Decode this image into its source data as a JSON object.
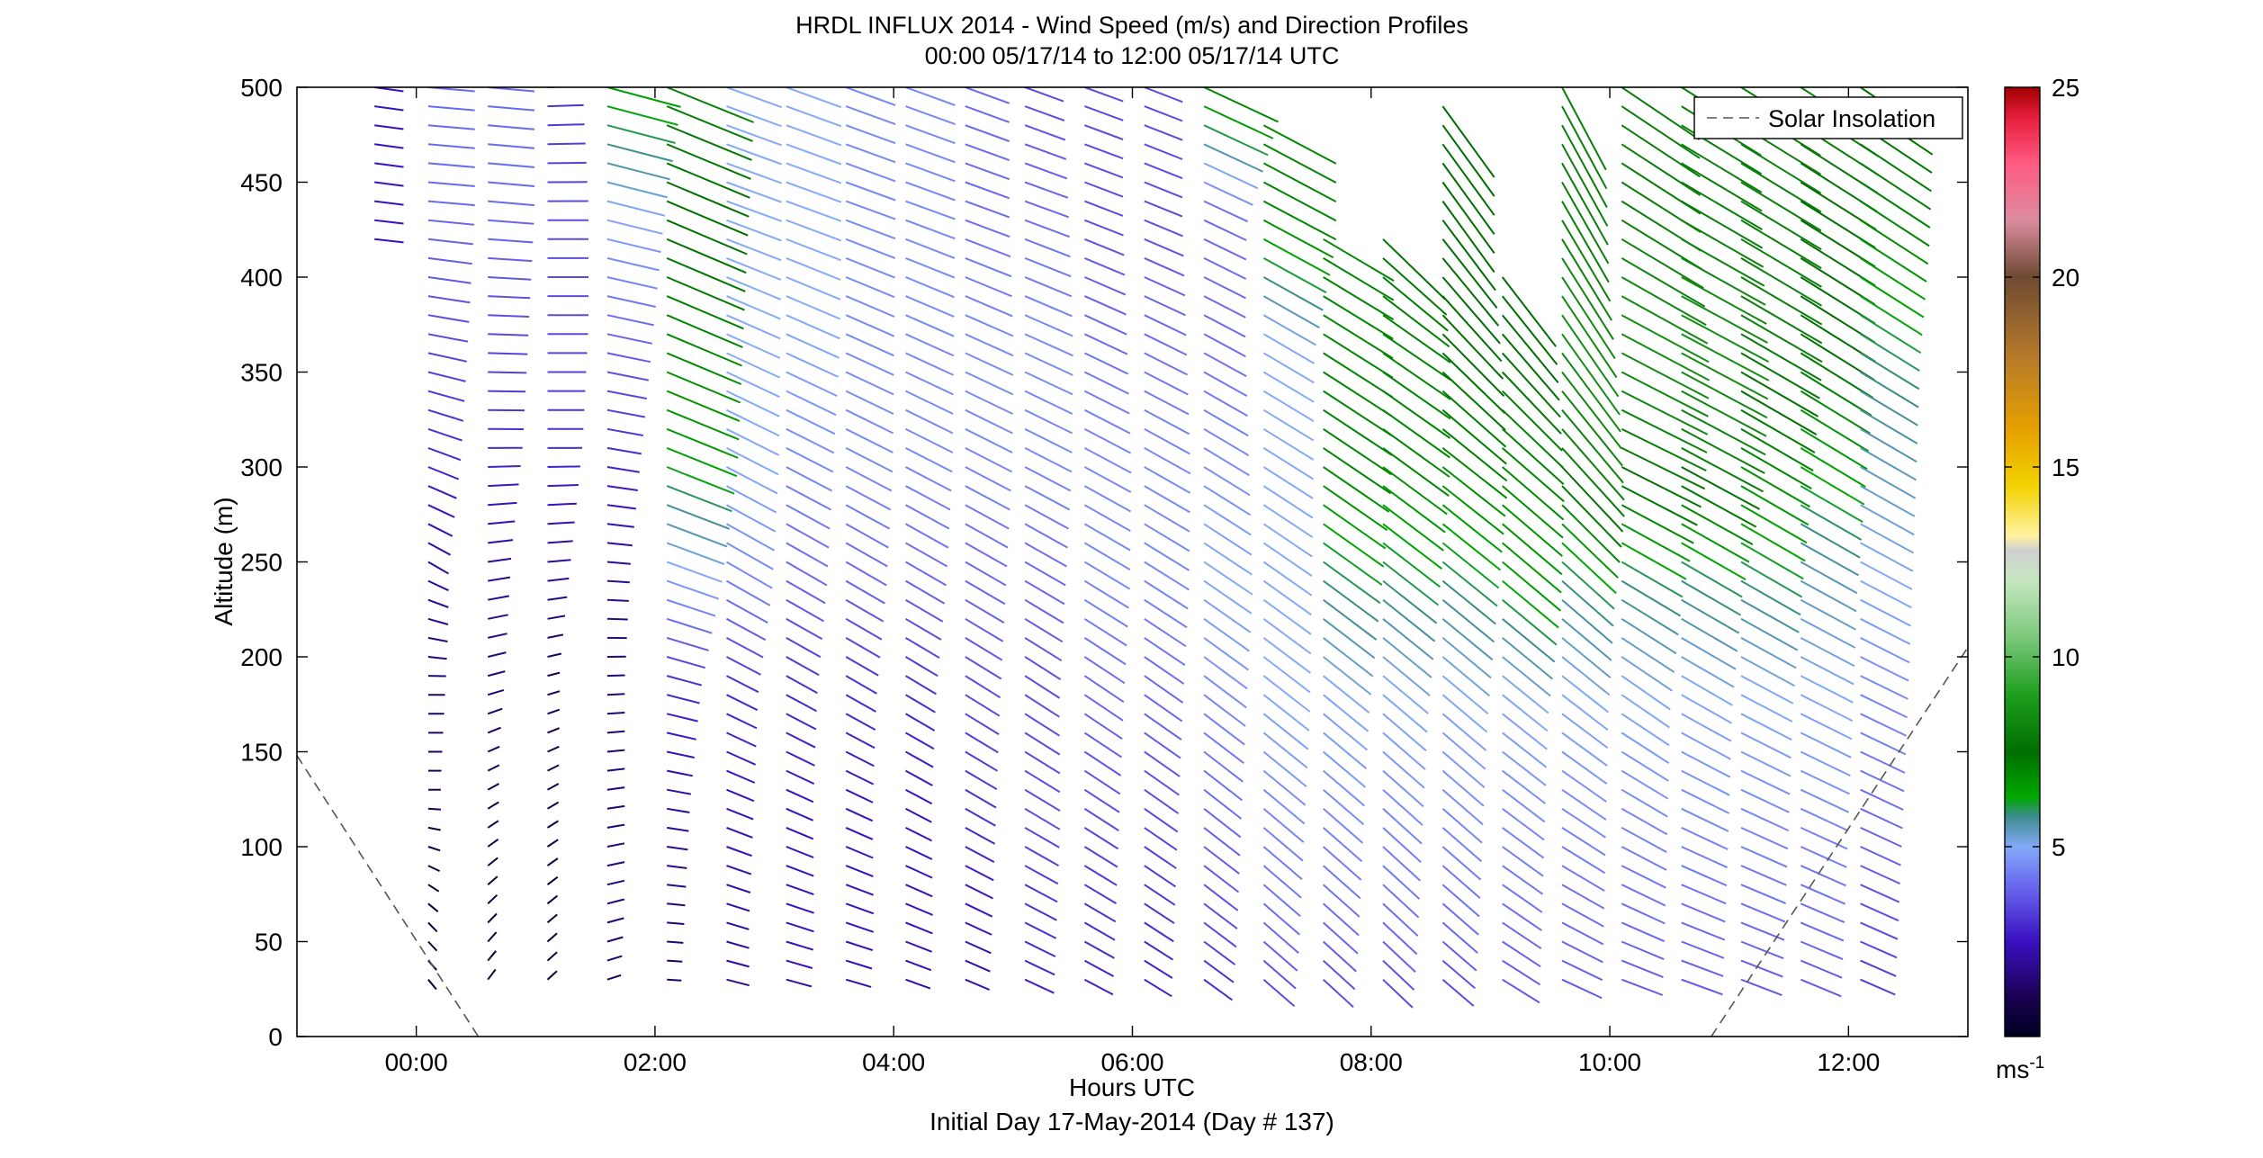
{
  "chart_data": {
    "type": "wind-barb profile",
    "title": "HRDL INFLUX 2014 - Wind Speed (m/s) and Direction Profiles",
    "subtitle": "00:00 05/17/14 to 12:00 05/17/14  UTC",
    "xlabel": "Hours UTC",
    "xlabel2": "Initial Day 17-May-2014 (Day # 137)",
    "ylabel": "Altitude (m)",
    "xlim": [
      -1.0,
      13.0
    ],
    "ylim": [
      0,
      500
    ],
    "xticks": [
      0,
      2,
      4,
      6,
      8,
      10,
      12
    ],
    "xticklabels": [
      "00:00",
      "02:00",
      "04:00",
      "06:00",
      "08:00",
      "10:00",
      "12:00"
    ],
    "yticks": [
      0,
      50,
      100,
      150,
      200,
      250,
      300,
      350,
      400,
      450,
      500
    ],
    "yticklabels": [
      "0",
      "50",
      "100",
      "150",
      "200",
      "250",
      "300",
      "350",
      "400",
      "450",
      "500"
    ],
    "legend": {
      "entries": [
        "Solar Insolation"
      ],
      "placement": "top-right",
      "line_style": "dashed",
      "line_color": "#555555"
    },
    "colorbar": {
      "range": [
        0,
        25
      ],
      "ticks": [
        5,
        10,
        15,
        20,
        25
      ],
      "ticklabels": [
        "5",
        "10",
        "15",
        "20",
        "25"
      ],
      "unit_base": "ms",
      "unit_exp": "-1",
      "colormap": [
        [
          0,
          "#000022"
        ],
        [
          1,
          "#1a0050"
        ],
        [
          2.5,
          "#3a10c0"
        ],
        [
          4,
          "#6a6af0"
        ],
        [
          5,
          "#84aaf8"
        ],
        [
          5.8,
          "#3c8c8c"
        ],
        [
          6.3,
          "#00a800"
        ],
        [
          7.5,
          "#006e00"
        ],
        [
          9,
          "#1e9e1e"
        ],
        [
          10.5,
          "#7ac87a"
        ],
        [
          12,
          "#c6e6c0"
        ],
        [
          12.8,
          "#d0d0d0"
        ],
        [
          13.2,
          "#fff2a0"
        ],
        [
          14.5,
          "#f2d200"
        ],
        [
          16,
          "#e6a000"
        ],
        [
          18,
          "#b4782c"
        ],
        [
          20,
          "#6e4a32"
        ],
        [
          21.5,
          "#dc8ca0"
        ],
        [
          23,
          "#ff5a82"
        ],
        [
          24.2,
          "#e61e3c"
        ],
        [
          25,
          "#a00000"
        ]
      ]
    },
    "solar_insolation": {
      "morning": [
        [
          -1.0,
          148
        ],
        [
          0.52,
          0
        ]
      ],
      "evening": [
        [
          10.85,
          0
        ],
        [
          13.0,
          205
        ]
      ]
    },
    "wind_profiles": {
      "times": [
        -0.35,
        0.1,
        0.6,
        1.1,
        1.6,
        2.1,
        2.6,
        3.1,
        3.6,
        4.1,
        4.6,
        5.1,
        5.6,
        6.1,
        6.6,
        7.1,
        7.6,
        8.1,
        8.6,
        9.1,
        9.6,
        10.1,
        10.6,
        11.1,
        11.6,
        12.1
      ],
      "altitude_start": 30,
      "altitude_step": 10,
      "altitude_end": 500,
      "coverage_top": [
        500,
        500,
        500,
        500,
        500,
        500,
        500,
        500,
        500,
        500,
        500,
        500,
        500,
        500,
        500,
        480,
        420,
        420,
        490,
        400,
        500,
        500,
        500,
        500,
        500,
        500
      ],
      "coverage_bottom": [
        420,
        30,
        30,
        30,
        30,
        30,
        30,
        30,
        20,
        10,
        0,
        0,
        30,
        30,
        30,
        30,
        30,
        30,
        30,
        20,
        30,
        30,
        30,
        30,
        30,
        30
      ],
      "speed_ms": [
        [
          3.0,
          3.5,
          3.5,
          3.5,
          3.0,
          2.8,
          2.5,
          2.5,
          2.5
        ],
        [
          0.5,
          0.5,
          1.0,
          1.5,
          2.0,
          3.0,
          3.5,
          4.0,
          4.0
        ],
        [
          0.5,
          0.5,
          0.8,
          1.5,
          2.0,
          3.0,
          3.5,
          4.0,
          4.0
        ],
        [
          0.5,
          0.5,
          0.8,
          1.0,
          2.0,
          3.0,
          3.5,
          3.5,
          3.0
        ],
        [
          1.0,
          1.5,
          1.5,
          1.5,
          2.0,
          3.0,
          4.0,
          5.0,
          6.5
        ],
        [
          1.0,
          1.5,
          2.0,
          3.0,
          5.0,
          6.5,
          7.0,
          7.5,
          8.0
        ],
        [
          2.0,
          2.0,
          2.5,
          3.0,
          4.5,
          5.0,
          5.0,
          5.0,
          5.0
        ],
        [
          2.0,
          2.5,
          2.5,
          3.0,
          4.0,
          4.5,
          5.0,
          5.0,
          5.0
        ],
        [
          2.0,
          2.5,
          2.5,
          3.0,
          4.0,
          4.5,
          4.5,
          4.5,
          4.5
        ],
        [
          2.0,
          2.5,
          2.5,
          3.0,
          4.0,
          4.5,
          4.5,
          4.5,
          4.5
        ],
        [
          2.0,
          2.5,
          3.0,
          3.5,
          4.0,
          4.5,
          4.5,
          4.0,
          4.0
        ],
        [
          2.5,
          3.0,
          3.5,
          3.5,
          4.0,
          4.5,
          4.5,
          4.0,
          3.5
        ],
        [
          2.5,
          3.0,
          3.5,
          4.0,
          4.5,
          4.5,
          4.0,
          3.5,
          3.5
        ],
        [
          2.5,
          3.0,
          3.5,
          4.0,
          4.5,
          4.5,
          4.0,
          3.5,
          3.5
        ],
        [
          2.5,
          3.5,
          4.0,
          4.5,
          5.0,
          4.5,
          4.0,
          4.0,
          7.0
        ],
        [
          3.0,
          4.0,
          4.5,
          5.0,
          5.0,
          5.0,
          5.0,
          7.0,
          7.0
        ],
        [
          3.0,
          4.0,
          4.5,
          5.0,
          6.0,
          7.0,
          7.0,
          7.0,
          7.0
        ],
        [
          3.0,
          4.0,
          4.5,
          5.0,
          6.0,
          7.0,
          7.0,
          7.5,
          7.5
        ],
        [
          3.0,
          4.0,
          4.5,
          5.0,
          6.0,
          7.0,
          7.5,
          7.5,
          7.5
        ],
        [
          3.5,
          4.0,
          4.5,
          5.0,
          6.5,
          7.0,
          7.5,
          7.5,
          7.5
        ],
        [
          3.5,
          4.0,
          4.5,
          5.0,
          6.0,
          8.0,
          8.5,
          8.0,
          8.0
        ],
        [
          3.5,
          4.0,
          4.5,
          5.0,
          6.0,
          8.0,
          8.5,
          8.0,
          8.0
        ],
        [
          3.5,
          4.0,
          4.5,
          5.0,
          6.0,
          8.0,
          8.5,
          8.0,
          8.0
        ],
        [
          3.5,
          4.0,
          4.5,
          5.0,
          6.0,
          7.0,
          8.0,
          8.0,
          8.0
        ],
        [
          3.5,
          4.0,
          4.5,
          5.0,
          5.5,
          6.5,
          7.5,
          7.5,
          8.0
        ],
        [
          3.0,
          3.5,
          4.0,
          4.5,
          5.0,
          5.5,
          6.0,
          7.0,
          7.5
        ]
      ],
      "direction_deg": [
        [
          250,
          255,
          262,
          268,
          270,
          273,
          275,
          277,
          278
        ],
        [
          325,
          315,
          270,
          270,
          300,
          290,
          280,
          275,
          275
        ],
        [
          210,
          225,
          240,
          255,
          262,
          270,
          272,
          275,
          275
        ],
        [
          225,
          230,
          240,
          255,
          265,
          270,
          270,
          270,
          268
        ],
        [
          250,
          255,
          262,
          268,
          275,
          280,
          282,
          284,
          285
        ],
        [
          272,
          275,
          280,
          285,
          290,
          292,
          293,
          293,
          292
        ],
        [
          282,
          287,
          292,
          297,
          300,
          297,
          294,
          290,
          290
        ],
        [
          283,
          288,
          294,
          299,
          300,
          297,
          294,
          290,
          290
        ],
        [
          284,
          289,
          295,
          300,
          300,
          297,
          294,
          290,
          290
        ],
        [
          288,
          292,
          298,
          301,
          300,
          297,
          294,
          290,
          290
        ],
        [
          291,
          295,
          300,
          302,
          300,
          297,
          294,
          290,
          290
        ],
        [
          293,
          297,
          301,
          303,
          300,
          297,
          294,
          290,
          290
        ],
        [
          296,
          300,
          303,
          304,
          301,
          298,
          295,
          291,
          290
        ],
        [
          300,
          303,
          305,
          305,
          302,
          299,
          296,
          292,
          291
        ],
        [
          305,
          307,
          308,
          307,
          304,
          301,
          298,
          295,
          295
        ],
        [
          311,
          311,
          310,
          308,
          305,
          302,
          300,
          298,
          298
        ],
        [
          313,
          312,
          311,
          309,
          306,
          304,
          302,
          300,
          300
        ],
        [
          314,
          313,
          312,
          310,
          308,
          306,
          304,
          318,
          320
        ],
        [
          310,
          311,
          311,
          310,
          309,
          308,
          316,
          324,
          324
        ],
        [
          300,
          304,
          307,
          309,
          310,
          311,
          320,
          326,
          326
        ],
        [
          292,
          298,
          304,
          308,
          312,
          318,
          325,
          330,
          332
        ],
        [
          288,
          294,
          300,
          305,
          300,
          296,
          298,
          302,
          304
        ],
        [
          288,
          292,
          296,
          300,
          300,
          298,
          298,
          300,
          302
        ],
        [
          290,
          292,
          295,
          298,
          300,
          300,
          300,
          301,
          302
        ],
        [
          292,
          293,
          295,
          297,
          299,
          301,
          302,
          302,
          303
        ],
        [
          293,
          294,
          295,
          296,
          298,
          300,
          302,
          303,
          304
        ]
      ]
    }
  }
}
